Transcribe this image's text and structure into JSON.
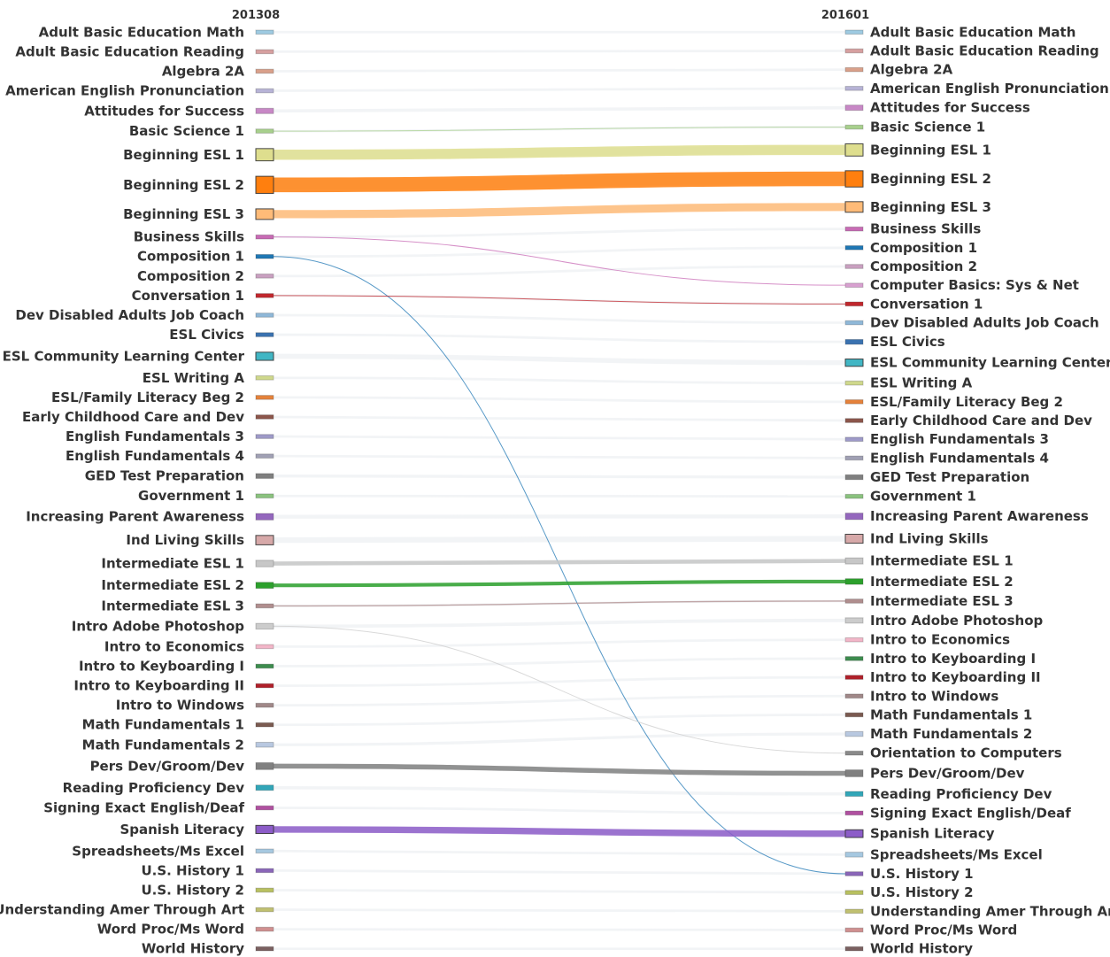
{
  "chart_data": {
    "type": "sankey",
    "title": "",
    "periods": [
      "201308",
      "201601"
    ],
    "left_nodes": [
      {
        "label": "Adult Basic Education Math",
        "value": 1,
        "color": "#9ecae1"
      },
      {
        "label": "Adult Basic Education Reading",
        "value": 1,
        "color": "#d6a0a0"
      },
      {
        "label": "Algebra 2A",
        "value": 1,
        "color": "#d9a08a"
      },
      {
        "label": "American English Pronunciation",
        "value": 1,
        "color": "#b7b3d6"
      },
      {
        "label": "Attitudes for Success",
        "value": 1.3,
        "color": "#c888c6"
      },
      {
        "label": "Basic Science 1",
        "value": 1,
        "color": "#a8d08d"
      },
      {
        "label": "Beginning ESL 1",
        "value": 3,
        "color": "#dede8e"
      },
      {
        "label": "Beginning ESL 2",
        "value": 4.2,
        "color": "#ff7f0e"
      },
      {
        "label": "Beginning ESL 3",
        "value": 2.6,
        "color": "#ffbb78"
      },
      {
        "label": "Business Skills",
        "value": 1,
        "color": "#c86bb5"
      },
      {
        "label": "Composition 1",
        "value": 1,
        "color": "#1f77b4"
      },
      {
        "label": "Composition 2",
        "value": 1,
        "color": "#c9a0c0"
      },
      {
        "label": "Conversation 1",
        "value": 1,
        "color": "#c1272d"
      },
      {
        "label": "Dev Disabled Adults Job Coach",
        "value": 1,
        "color": "#8fb8d8"
      },
      {
        "label": "ESL Civics",
        "value": 1,
        "color": "#3a72b0"
      },
      {
        "label": "ESL Community Learning Center",
        "value": 2,
        "color": "#41b6c4"
      },
      {
        "label": "ESL Writing A",
        "value": 1,
        "color": "#cfd88c"
      },
      {
        "label": "ESL/Family Literacy Beg 2",
        "value": 1,
        "color": "#e5823b"
      },
      {
        "label": "Early Childhood Care and Dev",
        "value": 1,
        "color": "#8c564b"
      },
      {
        "label": "English Fundamentals 3",
        "value": 1,
        "color": "#9e9ac8"
      },
      {
        "label": "English Fundamentals 4",
        "value": 1,
        "color": "#a0a0b4"
      },
      {
        "label": "GED Test Preparation",
        "value": 1.2,
        "color": "#7f7f7f"
      },
      {
        "label": "Government 1",
        "value": 1,
        "color": "#8ac27e"
      },
      {
        "label": "Increasing Parent Awareness",
        "value": 1.6,
        "color": "#9467bd"
      },
      {
        "label": "Ind Living Skills",
        "value": 2.3,
        "color": "#d7a9a9"
      },
      {
        "label": "Intermediate ESL 1",
        "value": 1.6,
        "color": "#c7c7c7"
      },
      {
        "label": "Intermediate ESL 2",
        "value": 1.5,
        "color": "#2ca02c"
      },
      {
        "label": "Intermediate ESL 3",
        "value": 1,
        "color": "#b08e8e"
      },
      {
        "label": "Intro Adobe Photoshop",
        "value": 1.4,
        "color": "#cccccc"
      },
      {
        "label": "Intro to Economics",
        "value": 1,
        "color": "#f2b6c8"
      },
      {
        "label": "Intro to Keyboarding I",
        "value": 1,
        "color": "#3d8c4e"
      },
      {
        "label": "Intro to Keyboarding II",
        "value": 1,
        "color": "#b0202a"
      },
      {
        "label": "Intro to Windows",
        "value": 1,
        "color": "#a08888"
      },
      {
        "label": "Math Fundamentals 1",
        "value": 1,
        "color": "#7a5a50"
      },
      {
        "label": "Math Fundamentals 2",
        "value": 1.2,
        "color": "#b8c8e0"
      },
      {
        "label": "Pers Dev/Groom/Dev",
        "value": 1.7,
        "color": "#808080"
      },
      {
        "label": "Reading Proficiency Dev",
        "value": 1.3,
        "color": "#32a6b8"
      },
      {
        "label": "Signing Exact English/Deaf",
        "value": 1,
        "color": "#b050a0"
      },
      {
        "label": "Spanish Literacy",
        "value": 2,
        "color": "#8c5cc8"
      },
      {
        "label": "Spreadsheets/Ms Excel",
        "value": 1,
        "color": "#a6c8e0"
      },
      {
        "label": "U.S. History 1",
        "value": 1,
        "color": "#8a66b8"
      },
      {
        "label": "U.S. History 2",
        "value": 1,
        "color": "#b8c060"
      },
      {
        "label": "Understanding Amer Through Art",
        "value": 1,
        "color": "#c0c070"
      },
      {
        "label": "Word Proc/Ms Word",
        "value": 1,
        "color": "#d09090"
      },
      {
        "label": "World History",
        "value": 1,
        "color": "#7a6060"
      }
    ],
    "right_nodes": [
      {
        "label": "Adult Basic Education Math",
        "value": 1,
        "color": "#9ecae1"
      },
      {
        "label": "Adult Basic Education Reading",
        "value": 1,
        "color": "#d6a0a0"
      },
      {
        "label": "Algebra 2A",
        "value": 1,
        "color": "#d9a08a"
      },
      {
        "label": "American English Pronunciation",
        "value": 1,
        "color": "#b7b3d6"
      },
      {
        "label": "Attitudes for Success",
        "value": 1.3,
        "color": "#c888c6"
      },
      {
        "label": "Basic Science 1",
        "value": 1,
        "color": "#a8d08d"
      },
      {
        "label": "Beginning ESL 1",
        "value": 3,
        "color": "#dede8e"
      },
      {
        "label": "Beginning ESL 2",
        "value": 4,
        "color": "#ff7f0e"
      },
      {
        "label": "Beginning ESL 3",
        "value": 2.6,
        "color": "#ffbb78"
      },
      {
        "label": "Business Skills",
        "value": 1,
        "color": "#c86bb5"
      },
      {
        "label": "Composition 1",
        "value": 1,
        "color": "#1f77b4"
      },
      {
        "label": "Composition 2",
        "value": 1,
        "color": "#c9a0c0"
      },
      {
        "label": "Computer Basics: Sys & Net",
        "value": 1,
        "color": "#d8a0d0"
      },
      {
        "label": "Conversation 1",
        "value": 1,
        "color": "#c1272d"
      },
      {
        "label": "Dev Disabled Adults Job Coach",
        "value": 1,
        "color": "#8fb8d8"
      },
      {
        "label": "ESL Civics",
        "value": 1.2,
        "color": "#3a72b0"
      },
      {
        "label": "ESL Community Learning Center",
        "value": 1.8,
        "color": "#41b6c4"
      },
      {
        "label": "ESL Writing A",
        "value": 1,
        "color": "#cfd88c"
      },
      {
        "label": "ESL/Family Literacy Beg 2",
        "value": 1,
        "color": "#e5823b"
      },
      {
        "label": "Early Childhood Care and Dev",
        "value": 1,
        "color": "#8c564b"
      },
      {
        "label": "English Fundamentals 3",
        "value": 1,
        "color": "#9e9ac8"
      },
      {
        "label": "English Fundamentals 4",
        "value": 1,
        "color": "#a0a0b4"
      },
      {
        "label": "GED Test Preparation",
        "value": 1.2,
        "color": "#7f7f7f"
      },
      {
        "label": "Government 1",
        "value": 1,
        "color": "#8ac27e"
      },
      {
        "label": "Increasing Parent Awareness",
        "value": 1.6,
        "color": "#9467bd"
      },
      {
        "label": "Ind Living Skills",
        "value": 2.2,
        "color": "#d7a9a9"
      },
      {
        "label": "Intermediate ESL 1",
        "value": 1.5,
        "color": "#c7c7c7"
      },
      {
        "label": "Intermediate ESL 2",
        "value": 1.4,
        "color": "#2ca02c"
      },
      {
        "label": "Intermediate ESL 3",
        "value": 1,
        "color": "#b08e8e"
      },
      {
        "label": "Intro Adobe Photoshop",
        "value": 1.3,
        "color": "#cccccc"
      },
      {
        "label": "Intro to Economics",
        "value": 1,
        "color": "#f2b6c8"
      },
      {
        "label": "Intro to Keyboarding I",
        "value": 1,
        "color": "#3d8c4e"
      },
      {
        "label": "Intro to Keyboarding II",
        "value": 1,
        "color": "#b0202a"
      },
      {
        "label": "Intro to Windows",
        "value": 1,
        "color": "#a08888"
      },
      {
        "label": "Math Fundamentals 1",
        "value": 1,
        "color": "#7a5a50"
      },
      {
        "label": "Math Fundamentals 2",
        "value": 1.2,
        "color": "#b8c8e0"
      },
      {
        "label": "Orientation to Computers",
        "value": 1,
        "color": "#8a8a8a"
      },
      {
        "label": "Pers Dev/Groom/Dev",
        "value": 1.7,
        "color": "#808080"
      },
      {
        "label": "Reading Proficiency Dev",
        "value": 1.2,
        "color": "#32a6b8"
      },
      {
        "label": "Signing Exact English/Deaf",
        "value": 1,
        "color": "#b050a0"
      },
      {
        "label": "Spanish Literacy",
        "value": 1.9,
        "color": "#8c5cc8"
      },
      {
        "label": "Spreadsheets/Ms Excel",
        "value": 1.2,
        "color": "#a6c8e0"
      },
      {
        "label": "U.S. History 1",
        "value": 1,
        "color": "#8a66b8"
      },
      {
        "label": "U.S. History 2",
        "value": 1,
        "color": "#b8c060"
      },
      {
        "label": "Understanding Amer Through Art",
        "value": 1,
        "color": "#c0c070"
      },
      {
        "label": "Word Proc/Ms Word",
        "value": 1,
        "color": "#d09090"
      },
      {
        "label": "World History",
        "value": 1,
        "color": "#7a6060"
      }
    ],
    "links": [
      {
        "source": "Beginning ESL 1",
        "target": "Beginning ESL 1",
        "value": 2.5,
        "color": "#dede8e"
      },
      {
        "source": "Beginning ESL 2",
        "target": "Beginning ESL 2",
        "value": 3.6,
        "color": "#ff7f0e"
      },
      {
        "source": "Beginning ESL 3",
        "target": "Beginning ESL 3",
        "value": 2,
        "color": "#ffbb78"
      },
      {
        "source": "Basic Science 1",
        "target": "Basic Science 1",
        "value": 0.2,
        "color": "#a8d08d"
      },
      {
        "source": "Business Skills",
        "target": "Computer Basics: Sys & Net",
        "value": 0.2,
        "color": "#c86bb5"
      },
      {
        "source": "Composition 1",
        "target": "U.S. History 1",
        "value": 0.2,
        "color": "#1f77b4"
      },
      {
        "source": "Conversation 1",
        "target": "Conversation 1",
        "value": 0.2,
        "color": "#c1272d"
      },
      {
        "source": "Intermediate ESL 1",
        "target": "Intermediate ESL 1",
        "value": 1,
        "color": "#c7c7c7"
      },
      {
        "source": "Intermediate ESL 2",
        "target": "Intermediate ESL 2",
        "value": 0.9,
        "color": "#2ca02c"
      },
      {
        "source": "Intermediate ESL 3",
        "target": "Intermediate ESL 3",
        "value": 0.3,
        "color": "#b08e8e"
      },
      {
        "source": "Intro Adobe Photoshop",
        "target": "Orientation to Computers",
        "value": 0.2,
        "color": "#cccccc"
      },
      {
        "source": "Pers Dev/Groom/Dev",
        "target": "Pers Dev/Groom/Dev",
        "value": 1.2,
        "color": "#808080"
      },
      {
        "source": "Spanish Literacy",
        "target": "Spanish Literacy",
        "value": 1.6,
        "color": "#8c5cc8"
      }
    ]
  }
}
